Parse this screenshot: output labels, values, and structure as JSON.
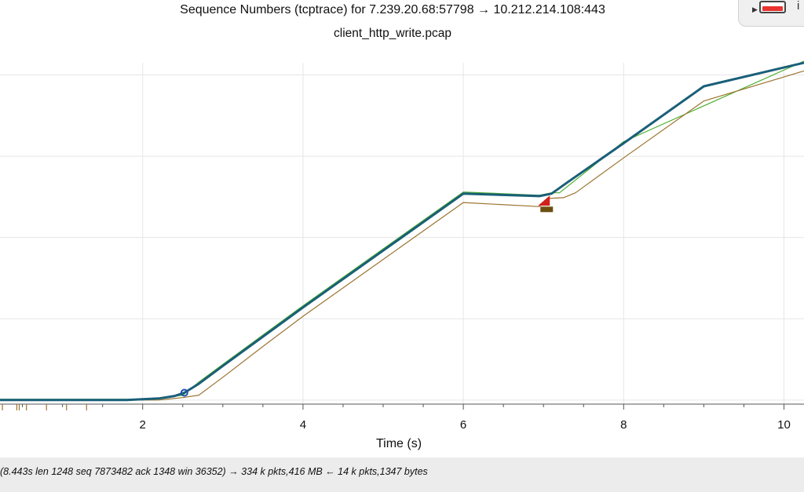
{
  "header": {
    "title": "Sequence Numbers (tcptrace) for 7.239.20.68:57798 → 10.212.214.108:443",
    "subtitle": "client_http_write.pcap"
  },
  "toolbar": {
    "widget_icon": "record-toggle-icon",
    "info_label": "i"
  },
  "status_bar": {
    "text": "(8.443s len 1248 seq 7873482 ack 1348 win 36352) → 334 k pkts,416 MB ← 14 k pkts,1347 bytes"
  },
  "colors": {
    "sent": "#1a5f78",
    "ack": "#9c7430",
    "window": "#4cae2e",
    "retransmit": "#d0201a",
    "sack": "#6a4f10",
    "marker": "#1f4fb0",
    "grid": "#e6e6e6"
  },
  "chart_data": {
    "type": "line",
    "title": "Sequence Numbers (tcptrace) for 7.239.20.68:57798 → 10.212.214.108:443",
    "subtitle": "client_http_write.pcap",
    "xlabel": "Time (s)",
    "ylabel": "",
    "xlim": [
      0.22,
      10.25
    ],
    "ylim": [
      -0.05,
      4.15
    ],
    "xticks": [
      2,
      4,
      6,
      8,
      10
    ],
    "grid": true,
    "series": [
      {
        "role": "sent",
        "x": [
          0.22,
          1.0,
          1.8,
          2.2,
          2.4,
          2.52,
          2.7,
          3.0,
          3.5,
          4.0,
          5.0,
          6.0,
          6.95,
          7.1,
          7.3,
          8.0,
          9.0,
          10.25
        ],
        "values": [
          0.0,
          0.0,
          0.0,
          0.02,
          0.05,
          0.09,
          0.2,
          0.42,
          0.78,
          1.14,
          1.84,
          2.54,
          2.51,
          2.54,
          2.68,
          3.16,
          3.86,
          4.15
        ]
      },
      {
        "role": "ack",
        "x": [
          0.22,
          1.0,
          1.8,
          2.2,
          2.5,
          2.7,
          3.0,
          3.5,
          4.0,
          5.0,
          6.0,
          6.95,
          7.05,
          7.25,
          7.4,
          8.0,
          9.0,
          10.25
        ],
        "values": [
          0.0,
          0.0,
          0.0,
          0.0,
          0.03,
          0.06,
          0.28,
          0.66,
          1.03,
          1.73,
          2.43,
          2.38,
          2.48,
          2.49,
          2.55,
          2.98,
          3.68,
          4.05
        ]
      },
      {
        "role": "window",
        "x": [
          0.22,
          1.8,
          2.2,
          2.5,
          2.7,
          3.0,
          4.0,
          6.0,
          6.95,
          7.1,
          7.2,
          8.0,
          10.25
        ],
        "values": [
          0.01,
          0.01,
          0.02,
          0.06,
          0.22,
          0.44,
          1.16,
          2.56,
          2.52,
          2.55,
          2.55,
          3.18,
          4.17
        ]
      }
    ],
    "markers": [
      {
        "type": "circle",
        "x": 2.52,
        "y": 0.09
      },
      {
        "type": "triangle",
        "x": 7.02,
        "y": 2.43
      },
      {
        "type": "block",
        "x": 7.04,
        "y": 2.38
      }
    ],
    "ack_ticks_x": [
      0.25,
      0.43,
      0.46,
      0.55,
      0.8,
      1.05,
      1.3
    ]
  }
}
